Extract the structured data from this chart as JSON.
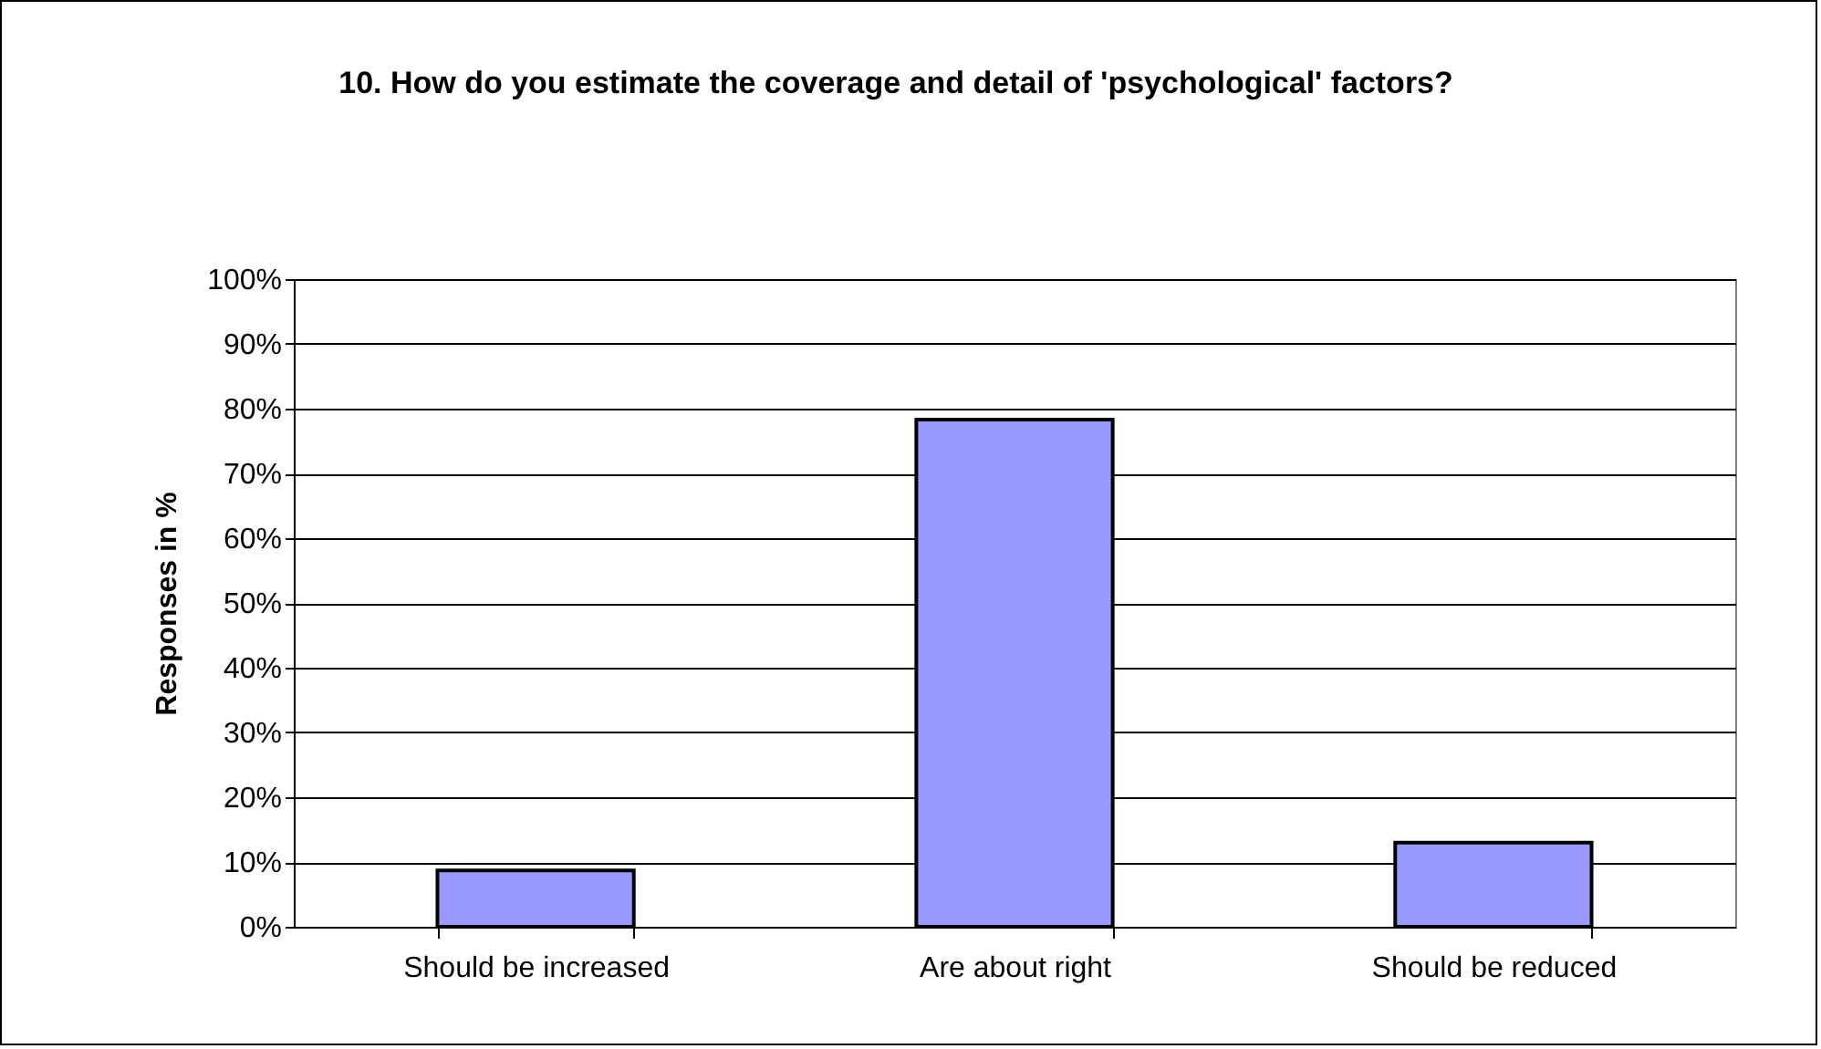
{
  "chart_data": {
    "type": "bar",
    "title": "10. How do you estimate the coverage and detail of 'psychological' factors?",
    "ylabel": "Responses in %",
    "categories": [
      "Should be increased",
      "Are about right",
      "Should be reduced"
    ],
    "values": [
      8.7,
      78.3,
      13.0
    ],
    "color": "#9999ff",
    "ylim": [
      0,
      100
    ],
    "yticks": [
      {
        "value": 0,
        "label": "0%"
      },
      {
        "value": 10,
        "label": "10%"
      },
      {
        "value": 20,
        "label": "20%"
      },
      {
        "value": 30,
        "label": "30%"
      },
      {
        "value": 40,
        "label": "40%"
      },
      {
        "value": 50,
        "label": "50%"
      },
      {
        "value": 60,
        "label": "60%"
      },
      {
        "value": 70,
        "label": "70%"
      },
      {
        "value": 80,
        "label": "80%"
      },
      {
        "value": 90,
        "label": "90%"
      },
      {
        "value": 100,
        "label": "100%"
      }
    ],
    "grid": "y"
  }
}
